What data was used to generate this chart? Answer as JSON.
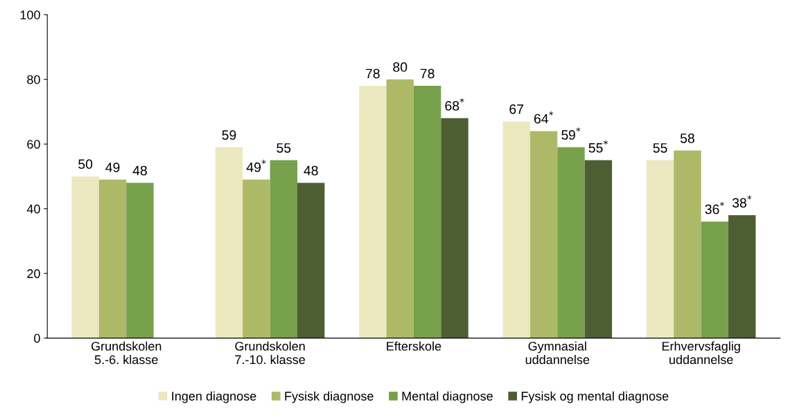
{
  "chart_data": {
    "type": "bar",
    "categories": [
      "Grundskolen\n5.-6. klasse",
      "Grundskolen\n7.-10. klasse",
      "Efterskole",
      "Gymnasial\nuddannelse",
      "Erhvervsfaglig\nuddannelse"
    ],
    "series": [
      {
        "name": "Ingen diagnose",
        "color": "#ebe8c0",
        "values": [
          50,
          59,
          78,
          67,
          55
        ],
        "value_labels": [
          "50",
          "59",
          "78",
          "67",
          "55"
        ]
      },
      {
        "name": "Fysisk diagnose",
        "color": "#adb966",
        "values": [
          49,
          49,
          80,
          64,
          58
        ],
        "value_labels": [
          "49",
          "49$^{*}$",
          "80",
          "64$^{*}$",
          "58"
        ]
      },
      {
        "name": "Mental diagnose",
        "color": "#77a04b",
        "values": [
          48,
          55,
          78,
          59,
          36
        ],
        "value_labels": [
          "48",
          "55",
          "78",
          "59$^{*}$",
          "36$^{*}$"
        ]
      },
      {
        "name": "Fysisk og mental diagnose",
        "color": "#4e5e33",
        "values": [
          null,
          48,
          68,
          55,
          38
        ],
        "value_labels": [
          null,
          "48",
          "68$^{*}$",
          "55$^{*}$",
          "38$^{*}$"
        ]
      }
    ],
    "ylim": [
      0,
      100
    ],
    "yticks": [
      0,
      20,
      40,
      60,
      80,
      100
    ],
    "grid": false,
    "legend": "bottom"
  }
}
